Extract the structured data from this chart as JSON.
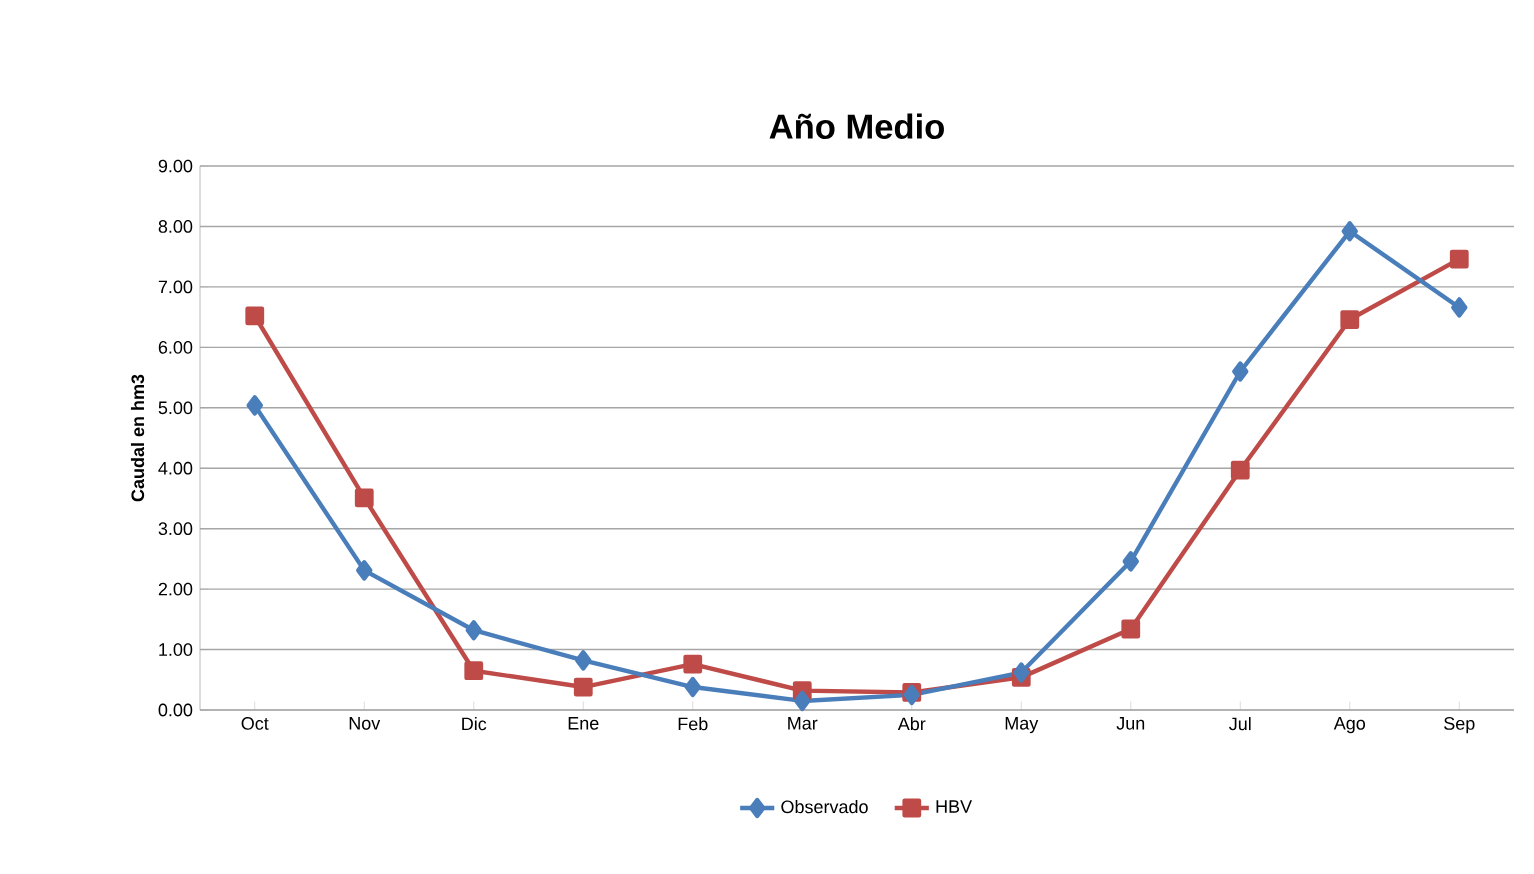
{
  "chart_data": {
    "type": "line",
    "title": "Año Medio",
    "ylabel": "Caudal en hm3",
    "categories": [
      "Oct",
      "Nov",
      "Dic",
      "Ene",
      "Feb",
      "Mar",
      "Abr",
      "May",
      "Jun",
      "Jul",
      "Ago",
      "Sep"
    ],
    "series": [
      {
        "name": "Observado",
        "color": "#4a7ebb",
        "marker": "diamond",
        "values": [
          5.04,
          2.31,
          1.32,
          0.82,
          0.38,
          0.15,
          0.25,
          0.62,
          2.46,
          5.6,
          7.92,
          6.66
        ]
      },
      {
        "name": "HBV",
        "color": "#be4b48",
        "marker": "square",
        "values": [
          6.52,
          3.51,
          0.65,
          0.38,
          0.76,
          0.32,
          0.29,
          0.54,
          1.34,
          3.97,
          6.46,
          7.46
        ]
      }
    ],
    "ylim": [
      0,
      9
    ],
    "yticks": [
      {
        "value": 0,
        "label": "0.00"
      },
      {
        "value": 1,
        "label": "1.00"
      },
      {
        "value": 2,
        "label": "2.00"
      },
      {
        "value": 3,
        "label": "3.00"
      },
      {
        "value": 4,
        "label": "4.00"
      },
      {
        "value": 5,
        "label": "5.00"
      },
      {
        "value": 6,
        "label": "6.00"
      },
      {
        "value": 7,
        "label": "7.00"
      },
      {
        "value": 8,
        "label": "8.00"
      },
      {
        "value": 9,
        "label": "9.00"
      }
    ],
    "grid": "y",
    "legend": "bottom",
    "line_style": "solid"
  }
}
